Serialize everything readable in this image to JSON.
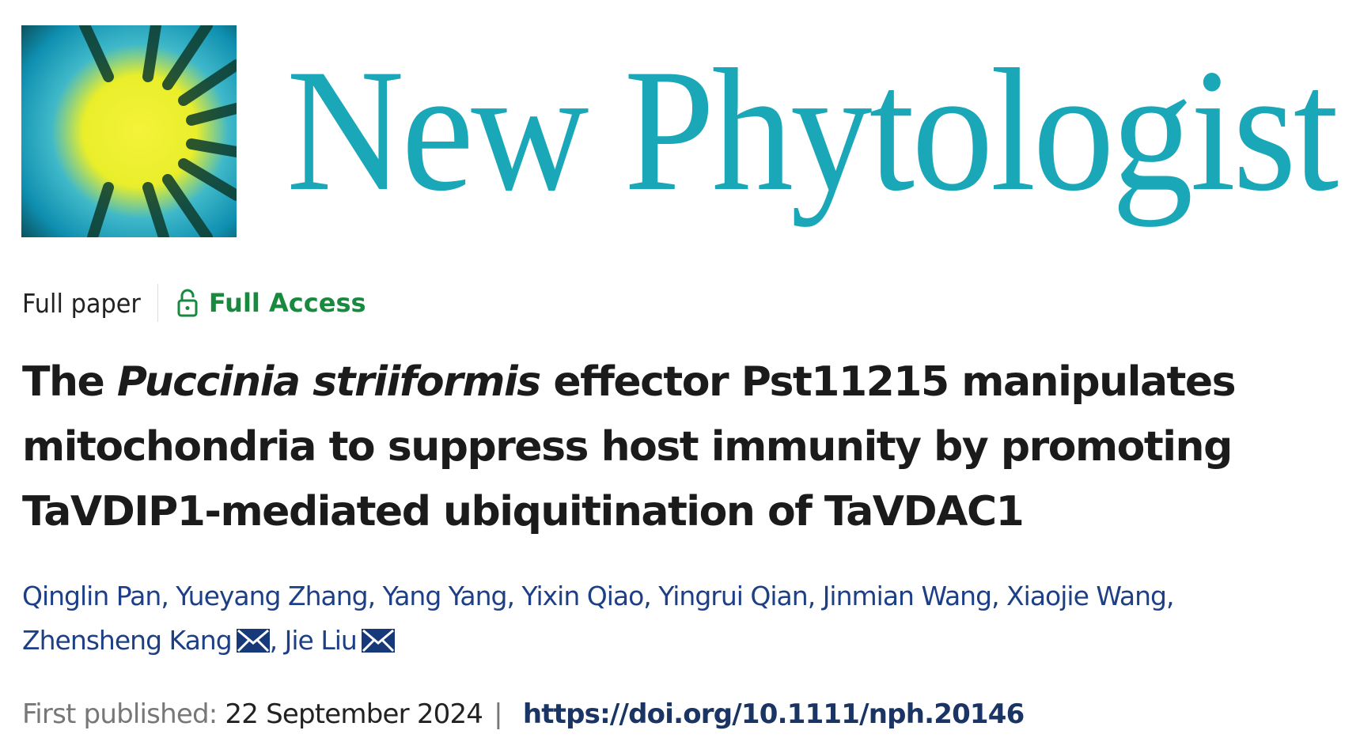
{
  "journal": {
    "name": "New Phytologist",
    "brand_color": "#1aa8b8",
    "logo_icon": "sunburst-logo"
  },
  "meta": {
    "article_type": "Full paper",
    "access_label": "Full Access",
    "access_icon": "unlock-icon",
    "access_color": "#178a3e"
  },
  "title": {
    "part1": "The ",
    "italic": "Puccinia striiformis",
    "part2": " effector Pst11215 manipulates",
    "line2": "mitochondria to suppress host immunity by promoting",
    "line3": "TaVDIP1-mediated ubiquitination of TaVDAC1"
  },
  "authors": [
    {
      "name": "Qinglin Pan"
    },
    {
      "name": "Yueyang Zhang"
    },
    {
      "name": "Yang Yang"
    },
    {
      "name": "Yixin Qiao"
    },
    {
      "name": "Yingrui Qian"
    },
    {
      "name": "Jinmian Wang"
    },
    {
      "name": "Xiaojie Wang"
    },
    {
      "name": "Zhensheng Kang",
      "corresponding": true
    },
    {
      "name": "Jie Liu",
      "corresponding": true
    }
  ],
  "publication": {
    "label": "First published:",
    "date": "22 September 2024",
    "separator": "|",
    "doi": "https://doi.org/10.1111/nph.20146"
  }
}
